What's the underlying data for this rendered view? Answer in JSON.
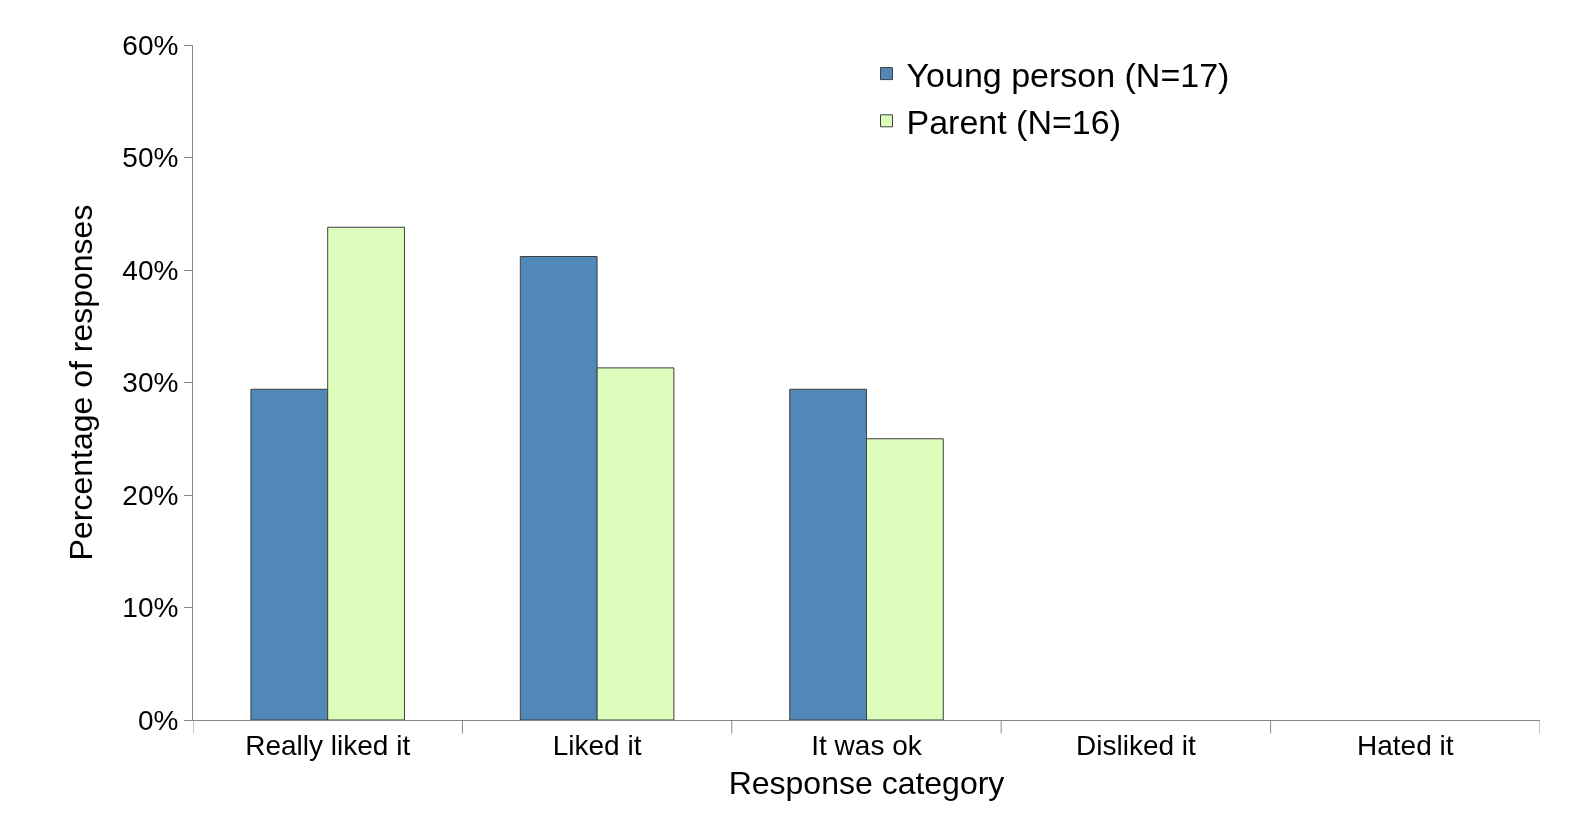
{
  "chart_data": {
    "type": "bar",
    "xlabel": "Response category",
    "ylabel": "Percentage of responses",
    "categories": [
      "Really liked it",
      "Liked it",
      "It was ok",
      "Disliked it",
      "Hated it"
    ],
    "series": [
      {
        "name": "Young person (N=17)",
        "color": "#5088b8",
        "values": [
          29.4,
          41.2,
          29.4,
          0,
          0
        ]
      },
      {
        "name": "Parent (N=16)",
        "color": "#dcfdbc",
        "values": [
          43.8,
          31.3,
          25,
          0,
          0
        ]
      }
    ],
    "ylim": [
      0,
      60
    ],
    "yticks": [
      {
        "value": 0,
        "label": "0%"
      },
      {
        "value": 10,
        "label": "10%"
      },
      {
        "value": 20,
        "label": "20%"
      },
      {
        "value": 30,
        "label": "30%"
      },
      {
        "value": 40,
        "label": "40%"
      },
      {
        "value": 50,
        "label": "50%"
      },
      {
        "value": 60,
        "label": "60%"
      }
    ],
    "grid": false,
    "legend": "top right"
  }
}
